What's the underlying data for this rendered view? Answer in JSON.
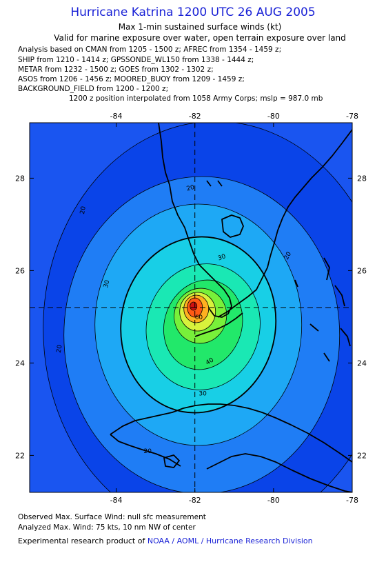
{
  "title": "Hurricane Katrina 1200 UTC 26 AUG 2005",
  "subtitle_1": "Max 1-min sustained surface winds (kt)",
  "subtitle_2": "Valid for marine exposure over water, open terrain exposure over land",
  "analysis_lines": [
    "Analysis based on  CMAN from 1205 - 1500 z;  AFREC from 1354 - 1459 z;",
    "SHIP from 1210 - 1414 z;  GPSSONDE_WL150 from 1338 - 1444 z;",
    "METAR from 1232 - 1500 z;  GOES from 1302 - 1302 z;",
    "ASOS from 1206 - 1456 z;  MOORED_BUOY from 1209 - 1459 z;",
    "BACKGROUND_FIELD from 1200 - 1200 z;"
  ],
  "interpolation_note": "1200 z position interpolated from 1058 Army Corps; mslp = 987.0 mb",
  "map": {
    "lon_ticks": [
      {
        "value": -84,
        "label": "-84"
      },
      {
        "value": -82,
        "label": "-82"
      },
      {
        "value": -80,
        "label": "-80"
      },
      {
        "value": -78,
        "label": "-78"
      }
    ],
    "lat_ticks": [
      {
        "value": 28,
        "label": "28"
      },
      {
        "value": 26,
        "label": "26"
      },
      {
        "value": 24,
        "label": "24"
      },
      {
        "value": 22,
        "label": "22"
      }
    ],
    "center": {
      "lon": -82.0,
      "lat": 25.2
    },
    "contour_labels": [
      {
        "text": "20",
        "lon": -84.8,
        "lat": 27.3,
        "rot": -80
      },
      {
        "text": "20",
        "lon": -82.1,
        "lat": 27.75,
        "rot": -15
      },
      {
        "text": "20",
        "lon": -79.6,
        "lat": 26.3,
        "rot": -60
      },
      {
        "text": "20",
        "lon": -85.4,
        "lat": 24.3,
        "rot": -80
      },
      {
        "text": "20",
        "lon": -83.2,
        "lat": 22.05,
        "rot": 0
      },
      {
        "text": "30",
        "lon": -81.3,
        "lat": 26.25,
        "rot": -20
      },
      {
        "text": "30",
        "lon": -84.2,
        "lat": 25.7,
        "rot": -75
      },
      {
        "text": "30",
        "lon": -81.8,
        "lat": 23.3,
        "rot": 0
      },
      {
        "text": "40",
        "lon": -81.6,
        "lat": 24.0,
        "rot": -30
      },
      {
        "text": "60",
        "lon": -81.9,
        "lat": 24.95,
        "rot": 0
      }
    ],
    "colors": {
      "bg": "#1a55f0",
      "levels": [
        "#0a44e8",
        "#1f7df5",
        "#1ea8f5",
        "#18cfe6",
        "#1ae8b4",
        "#22e86a",
        "#78f03a",
        "#d8f23c",
        "#ffb020",
        "#ff5a14",
        "#d01010"
      ]
    }
  },
  "footer_observed": "Observed Max. Surface Wind: null sfc measurement",
  "footer_analyzed": "Analyzed Max. Wind: 75 kts, 10 nm NW of center",
  "credit_prefix": "Experimental research product of ",
  "credit_link": "NOAA / AOML / Hurricane Research Division"
}
